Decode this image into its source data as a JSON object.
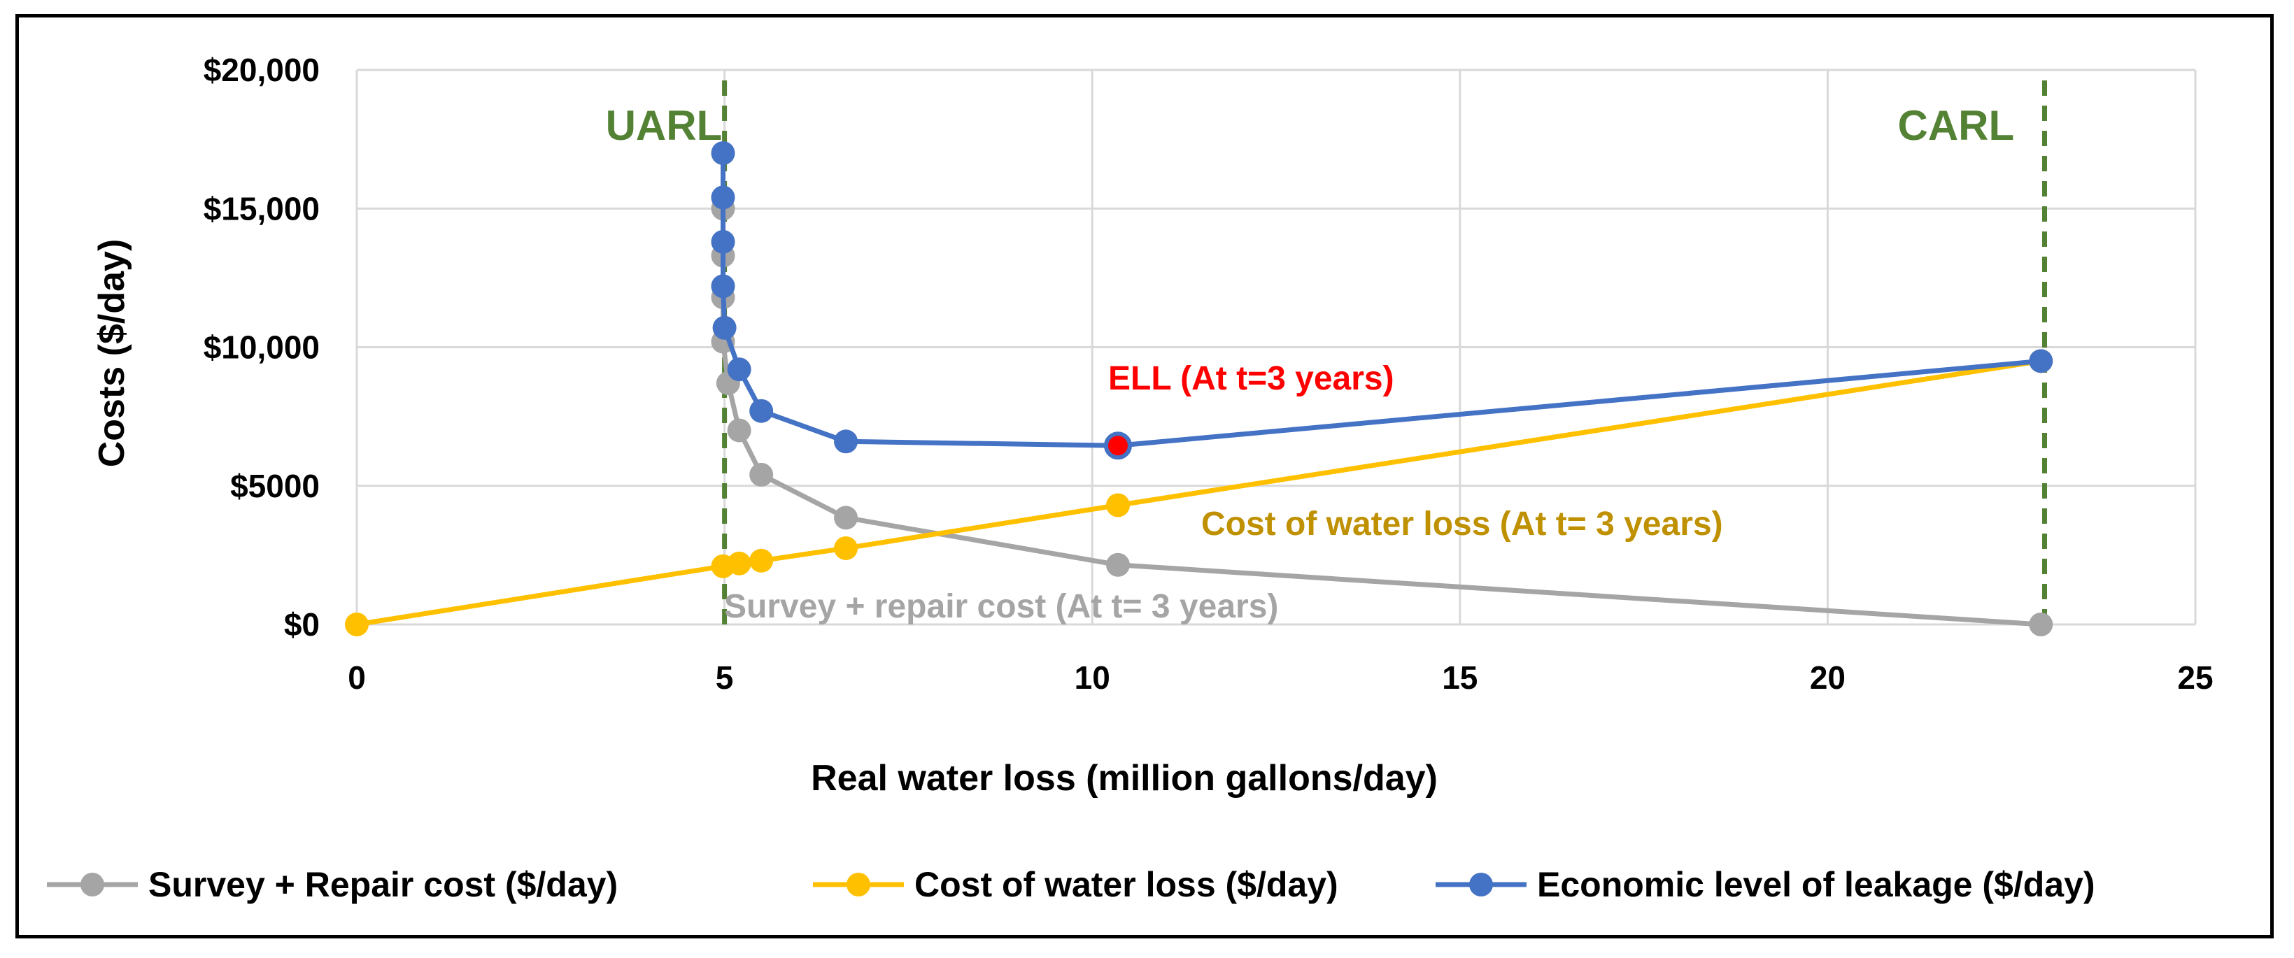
{
  "chart_data": {
    "type": "line",
    "title": "",
    "xlabel": "Real water loss (million gallons/day)",
    "ylabel": "Costs ($/day)",
    "xlim": [
      0,
      25
    ],
    "ylim": [
      0,
      20000
    ],
    "x_ticks": [
      0,
      5,
      10,
      15,
      20,
      25
    ],
    "x_tick_labels": [
      "0",
      "5",
      "10",
      "15",
      "20",
      "25"
    ],
    "y_ticks": [
      0,
      5000,
      10000,
      15000,
      20000
    ],
    "y_tick_labels": [
      "$0",
      "$5000",
      "$10,000",
      "$15,000",
      "$20,000"
    ],
    "grid": true,
    "legend_position": "bottom",
    "series": [
      {
        "name": "Survey + Repair cost ($/day)",
        "color": "#A5A5A5",
        "points": [
          [
            4.98,
            15000
          ],
          [
            4.98,
            13300
          ],
          [
            4.98,
            11800
          ],
          [
            4.98,
            10200
          ],
          [
            5.05,
            8700
          ],
          [
            5.2,
            7000
          ],
          [
            5.5,
            5400
          ],
          [
            6.65,
            3850
          ],
          [
            10.35,
            2150
          ],
          [
            22.9,
            0
          ]
        ]
      },
      {
        "name": "Cost of water loss ($/day)",
        "color": "#FFC000",
        "points": [
          [
            0,
            0
          ],
          [
            4.98,
            2100
          ],
          [
            5.2,
            2200
          ],
          [
            5.5,
            2300
          ],
          [
            6.65,
            2750
          ],
          [
            10.35,
            4300
          ],
          [
            22.9,
            9500
          ]
        ]
      },
      {
        "name": "Economic level of leakage ($/day)",
        "color": "#4472C4",
        "points": [
          [
            4.98,
            17000
          ],
          [
            4.98,
            15400
          ],
          [
            4.98,
            13800
          ],
          [
            4.98,
            12200
          ],
          [
            5.0,
            10700
          ],
          [
            5.2,
            9200
          ],
          [
            5.5,
            7700
          ],
          [
            6.65,
            6600
          ],
          [
            10.35,
            6450
          ],
          [
            22.9,
            9500
          ]
        ],
        "highlight_index": 8,
        "highlight_color": "#FF0000"
      }
    ],
    "reference_lines": [
      {
        "label": "UARL",
        "x": 5.0,
        "color": "#548235"
      },
      {
        "label": "CARL",
        "x": 22.95,
        "color": "#548235"
      }
    ],
    "annotations": [
      {
        "text": "ELL (At t=3 years)",
        "color": "#FF0000"
      },
      {
        "text": "Cost of water loss (At t= 3 years)",
        "color": "#BF9000"
      },
      {
        "text": "Survey + repair cost (At t= 3 years)",
        "color": "#A5A5A5"
      }
    ]
  }
}
